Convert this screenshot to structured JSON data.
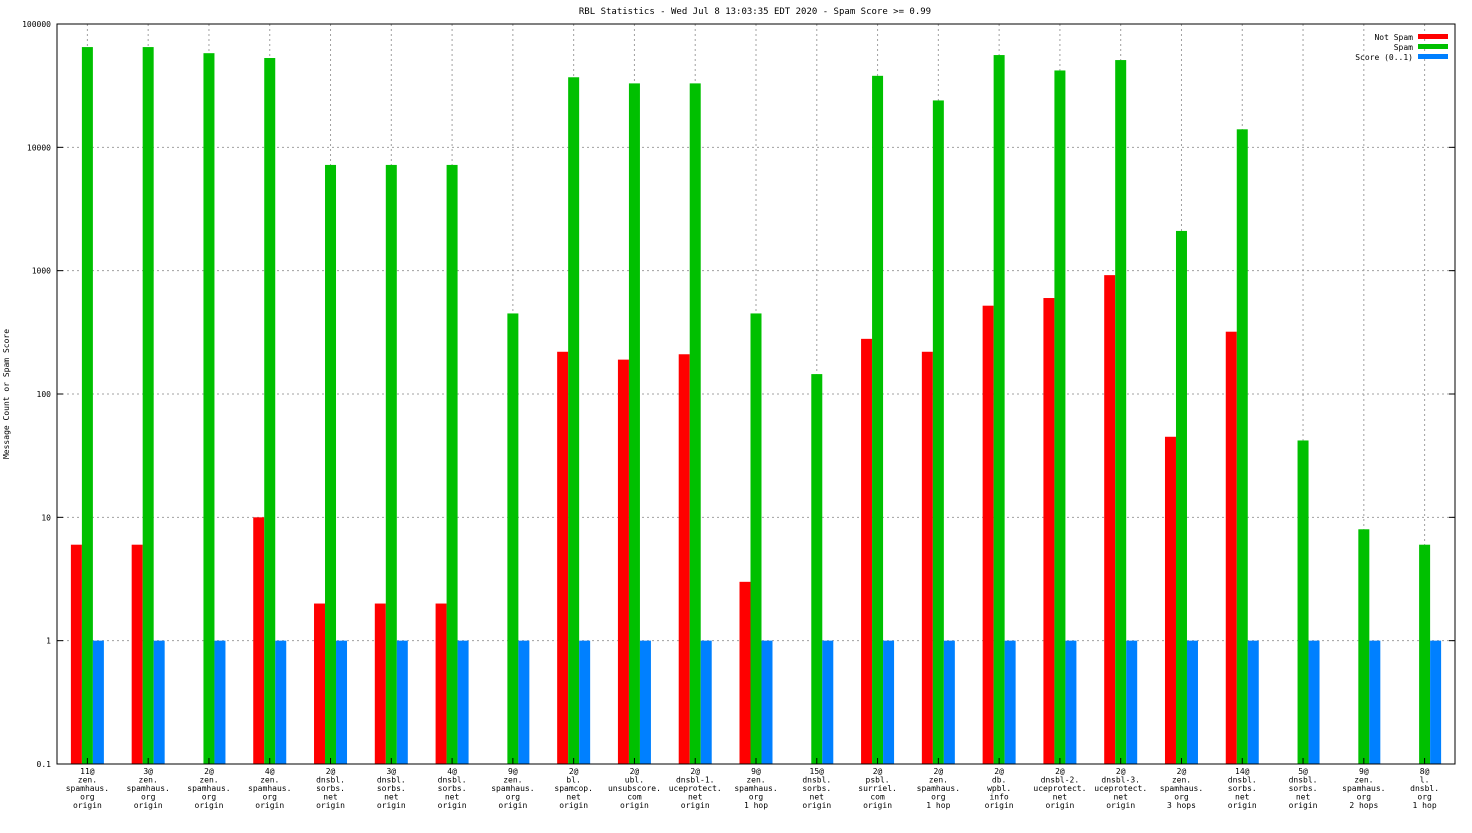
{
  "chart_data": {
    "type": "bar",
    "title": "RBL Statistics - Wed Jul  8 13:03:35 EDT 2020 - Spam Score >= 0.99",
    "ylabel": "Message Count or Spam Score",
    "xlabel": "",
    "yscale": "log",
    "ylim": [
      0.1,
      100000
    ],
    "yticks": [
      "0.1",
      "1",
      "10",
      "100",
      "1000",
      "10000",
      "100000"
    ],
    "grid": true,
    "legend_position": "top-right",
    "categories": [
      [
        "11@",
        "zen.",
        "spamhaus.",
        "org",
        "origin"
      ],
      [
        "3@",
        "zen.",
        "spamhaus.",
        "org",
        "origin"
      ],
      [
        "2@",
        "zen.",
        "spamhaus.",
        "org",
        "origin"
      ],
      [
        "4@",
        "zen.",
        "spamhaus.",
        "org",
        "origin"
      ],
      [
        "2@",
        "dnsbl.",
        "sorbs.",
        "net",
        "origin"
      ],
      [
        "3@",
        "dnsbl.",
        "sorbs.",
        "net",
        "origin"
      ],
      [
        "4@",
        "dnsbl.",
        "sorbs.",
        "net",
        "origin"
      ],
      [
        "9@",
        "zen.",
        "spamhaus.",
        "org",
        "origin"
      ],
      [
        "2@",
        "bl.",
        "spamcop.",
        "net",
        "origin"
      ],
      [
        "2@",
        "ubl.",
        "unsubscore.",
        "com",
        "origin"
      ],
      [
        "2@",
        "dnsbl-1.",
        "uceprotect.",
        "net",
        "origin"
      ],
      [
        "9@",
        "zen.",
        "spamhaus.",
        "org",
        "1 hop"
      ],
      [
        "15@",
        "dnsbl.",
        "sorbs.",
        "net",
        "origin"
      ],
      [
        "2@",
        "psbl.",
        "surriel.",
        "com",
        "origin"
      ],
      [
        "2@",
        "zen.",
        "spamhaus.",
        "org",
        "1 hop"
      ],
      [
        "2@",
        "db.",
        "wpbl.",
        "info",
        "origin"
      ],
      [
        "2@",
        "dnsbl-2.",
        "uceprotect.",
        "net",
        "origin"
      ],
      [
        "2@",
        "dnsbl-3.",
        "uceprotect.",
        "net",
        "origin"
      ],
      [
        "2@",
        "zen.",
        "spamhaus.",
        "org",
        "3 hops"
      ],
      [
        "14@",
        "dnsbl.",
        "sorbs.",
        "net",
        "origin"
      ],
      [
        "5@",
        "dnsbl.",
        "sorbs.",
        "net",
        "origin"
      ],
      [
        "9@",
        "zen.",
        "spamhaus.",
        "org",
        "2 hops"
      ],
      [
        "8@",
        "l.",
        "dnsbl.",
        "org",
        "1 hop"
      ]
    ],
    "series": [
      {
        "name": "Not Spam",
        "color": "#ff0000",
        "values": [
          6,
          6,
          0,
          10,
          2,
          2,
          2,
          0,
          220,
          190,
          210,
          3,
          0,
          280,
          220,
          520,
          600,
          920,
          45,
          320,
          0,
          0,
          0
        ]
      },
      {
        "name": "Spam",
        "color": "#00c000",
        "values": [
          65000,
          65000,
          58000,
          53000,
          7200,
          7200,
          7200,
          450,
          37000,
          33000,
          33000,
          450,
          145,
          38000,
          24000,
          56000,
          42000,
          51000,
          2100,
          14000,
          42,
          8,
          6
        ]
      },
      {
        "name": "Score (0..1)",
        "color": "#0080ff",
        "values": [
          1,
          1,
          1,
          1,
          1,
          1,
          1,
          1,
          1,
          1,
          1,
          1,
          1,
          1,
          1,
          1,
          1,
          1,
          1,
          1,
          1,
          1,
          1
        ]
      }
    ]
  }
}
